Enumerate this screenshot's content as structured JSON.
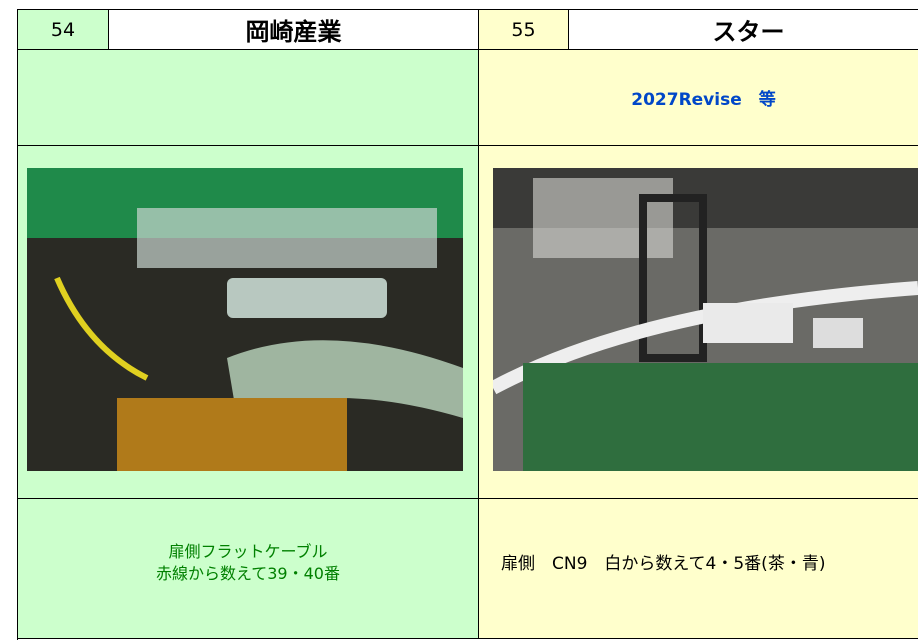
{
  "left": {
    "number": "54",
    "maker": "岡崎産業",
    "caption": [
      "扉側フラットケーブル",
      "赤線から数えて39・40番"
    ]
  },
  "right": {
    "number": "55",
    "maker": "スター",
    "note": "2027Revise　等",
    "caption": "扉側　CN9　白から数えて4・5番(茶・青)"
  }
}
